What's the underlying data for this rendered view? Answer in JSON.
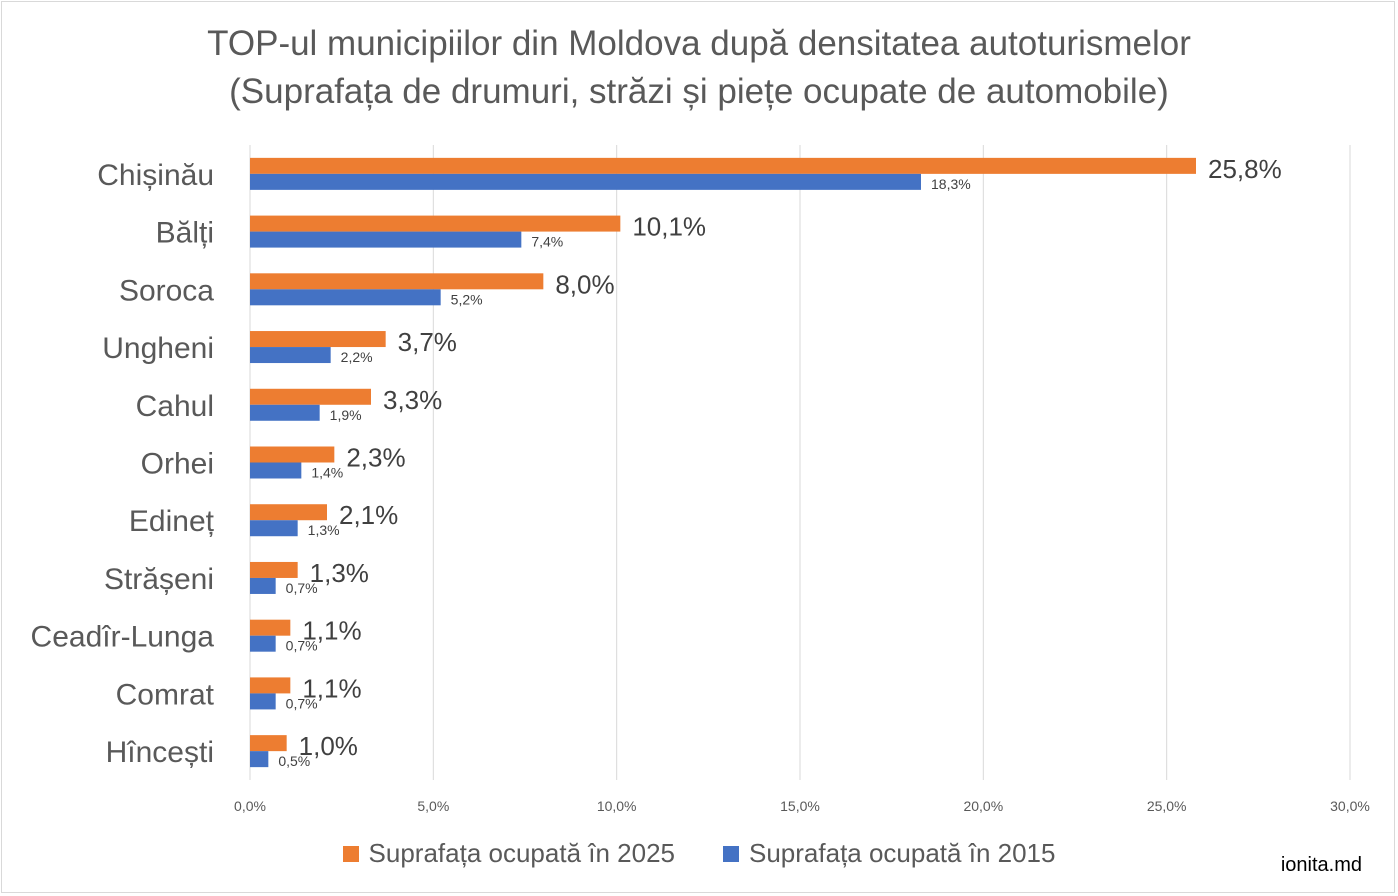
{
  "title_line1": "TOP-ul municipiilor din Moldova după densitatea autoturismelor",
  "title_line2": "(Suprafața de drumuri, străzi și piețe ocupate de automobile)",
  "credit": "ionita.md",
  "colors": {
    "series_2025": "#ED7D31",
    "series_2015": "#4472C4",
    "grid": "#d9d9d9"
  },
  "chart_data": {
    "type": "bar",
    "orientation": "horizontal",
    "categories": [
      "Chișinău",
      "Bălți",
      "Soroca",
      "Ungheni",
      "Cahul",
      "Orhei",
      "Edineț",
      "Strășeni",
      "Ceadîr-Lunga",
      "Comrat",
      "Hîncești"
    ],
    "series": [
      {
        "name": "Suprafața ocupată în 2025",
        "values": [
          25.8,
          10.1,
          8.0,
          3.7,
          3.3,
          2.3,
          2.1,
          1.3,
          1.1,
          1.1,
          1.0
        ],
        "labels": [
          "25,8%",
          "10,1%",
          "8,0%",
          "3,7%",
          "3,3%",
          "2,3%",
          "2,1%",
          "1,3%",
          "1,1%",
          "1,1%",
          "1,0%"
        ]
      },
      {
        "name": "Suprafața ocupată în 2015",
        "values": [
          18.3,
          7.4,
          5.2,
          2.2,
          1.9,
          1.4,
          1.3,
          0.7,
          0.7,
          0.7,
          0.5
        ],
        "labels": [
          "18,3%",
          "7,4%",
          "5,2%",
          "2,2%",
          "1,9%",
          "1,4%",
          "1,3%",
          "0,7%",
          "0,7%",
          "0,7%",
          "0,5%"
        ]
      }
    ],
    "xlim": [
      0,
      30
    ],
    "xticks": [
      0,
      5,
      10,
      15,
      20,
      25,
      30
    ],
    "xtick_labels": [
      "0,0%",
      "5,0%",
      "10,0%",
      "15,0%",
      "20,0%",
      "25,0%",
      "30,0%"
    ],
    "grid": true,
    "legend_position": "bottom"
  }
}
